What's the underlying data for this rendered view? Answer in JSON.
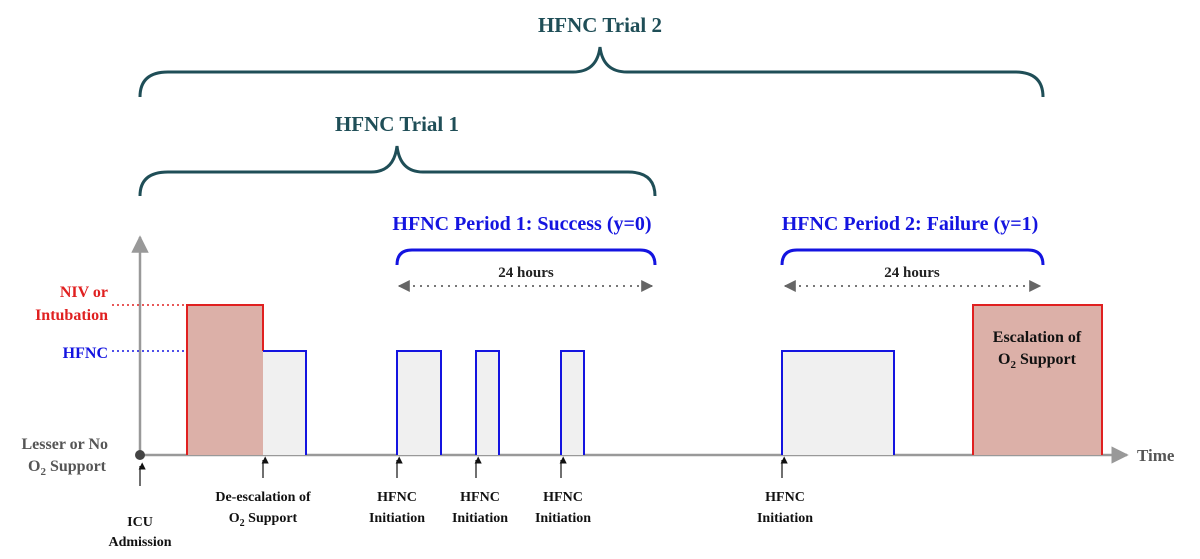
{
  "trials": {
    "trial2": "HFNC Trial 2",
    "trial1": "HFNC Trial 1"
  },
  "periods": {
    "period1": "HFNC Period 1:  Success (y=0)",
    "period2": "HFNC Period 2:  Failure (y=1)",
    "duration1": "24 hours",
    "duration2": "24 hours"
  },
  "levels": {
    "niv_line1": "NIV or",
    "niv_line2": "Intubation",
    "hfnc": "HFNC",
    "lesser_line1": "Lesser or No",
    "lesser_line2_main": "O",
    "lesser_line2_sub": "2",
    "lesser_line2_end": " Support"
  },
  "axis": {
    "time_label": "Time"
  },
  "events": {
    "icu_line1": "ICU",
    "icu_line2": "Admission",
    "deesc_line1": "De-escalation of",
    "deesc_line2_main": "O",
    "deesc_line2_sub": "2",
    "deesc_line2_end": " Support",
    "init1_line1": "HFNC",
    "init1_line2": "Initiation",
    "init2_line1": "HFNC",
    "init2_line2": "Initiation",
    "init3_line1": "HFNC",
    "init3_line2": "Initiation",
    "init4_line1": "HFNC",
    "init4_line2": "Initiation"
  },
  "escalation": {
    "line1": "Escalation of",
    "line2_main": "O",
    "line2_sub": "2",
    "line2_end": " Support"
  },
  "colors": {
    "trial": "#1f4e57",
    "period": "#1414e0",
    "niv_red": "#e02020",
    "niv_fill": "#dcb0a8",
    "hfnc_fill": "#f0f0f0",
    "axis": "#999999"
  }
}
